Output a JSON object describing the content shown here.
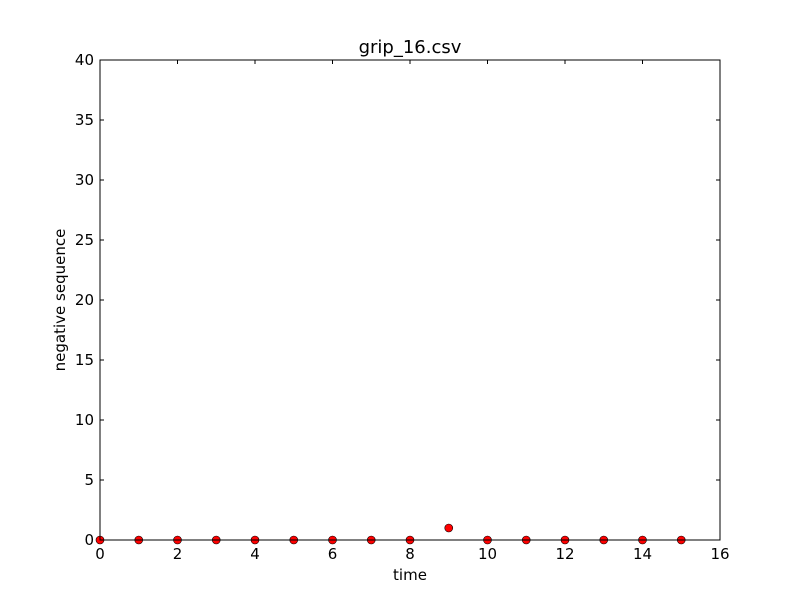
{
  "chart_data": {
    "type": "scatter",
    "title": "grip_16.csv",
    "xlabel": "time",
    "ylabel": "negative sequence",
    "xlim": [
      0,
      16
    ],
    "ylim": [
      0,
      40
    ],
    "xticks": [
      0,
      2,
      4,
      6,
      8,
      10,
      12,
      14,
      16
    ],
    "yticks": [
      0,
      5,
      10,
      15,
      20,
      25,
      30,
      35,
      40
    ],
    "grid": false,
    "marker_color": "#ff0000",
    "x": [
      0,
      1,
      2,
      3,
      4,
      5,
      6,
      7,
      8,
      9,
      10,
      11,
      12,
      13,
      14,
      15
    ],
    "y": [
      0,
      0,
      0,
      0,
      0,
      0,
      0,
      0,
      0,
      1,
      0,
      0,
      0,
      0,
      0,
      0
    ]
  }
}
